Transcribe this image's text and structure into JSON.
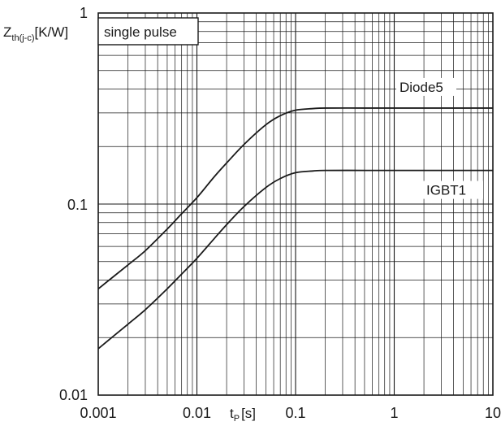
{
  "chart_data": {
    "type": "line",
    "title": "",
    "scale": {
      "x": "log",
      "y": "log"
    },
    "xlim": [
      0.001,
      10
    ],
    "ylim": [
      0.01,
      1
    ],
    "grid": true,
    "legend": "none",
    "xlabel": {
      "main": "t",
      "sub": "P",
      "unit": "[s]"
    },
    "ylabel": {
      "main": "Z",
      "sub": "th(j-c)",
      "unit": "[K/W]"
    },
    "annotation": "single pulse",
    "x_tick_labels": [
      {
        "value": 0.001,
        "label": "0.001"
      },
      {
        "value": 0.01,
        "label": "0.01"
      },
      {
        "value": 0.1,
        "label": "0.1"
      },
      {
        "value": 1,
        "label": "1"
      },
      {
        "value": 10,
        "label": "10"
      }
    ],
    "y_tick_labels": [
      {
        "value": 0.01,
        "label": "0.01"
      },
      {
        "value": 0.1,
        "label": "0.1"
      },
      {
        "value": 1,
        "label": "1"
      }
    ],
    "series": [
      {
        "name": "Diode5",
        "color": "#1a1a1a",
        "x": [
          0.001,
          0.002,
          0.003,
          0.005,
          0.007,
          0.01,
          0.015,
          0.02,
          0.03,
          0.05,
          0.07,
          0.1,
          0.15,
          0.2,
          0.5,
          1,
          2,
          5,
          10
        ],
        "y": [
          0.036,
          0.048,
          0.057,
          0.074,
          0.089,
          0.108,
          0.139,
          0.164,
          0.205,
          0.26,
          0.29,
          0.31,
          0.316,
          0.318,
          0.318,
          0.318,
          0.318,
          0.318,
          0.318
        ]
      },
      {
        "name": "IGBT1",
        "color": "#1a1a1a",
        "x": [
          0.001,
          0.002,
          0.003,
          0.005,
          0.007,
          0.01,
          0.015,
          0.02,
          0.03,
          0.05,
          0.07,
          0.1,
          0.15,
          0.2,
          0.5,
          1,
          2,
          5,
          10
        ],
        "y": [
          0.0175,
          0.0235,
          0.028,
          0.036,
          0.043,
          0.052,
          0.066,
          0.078,
          0.097,
          0.122,
          0.136,
          0.146,
          0.149,
          0.15,
          0.15,
          0.15,
          0.15,
          0.15,
          0.15
        ]
      }
    ]
  }
}
